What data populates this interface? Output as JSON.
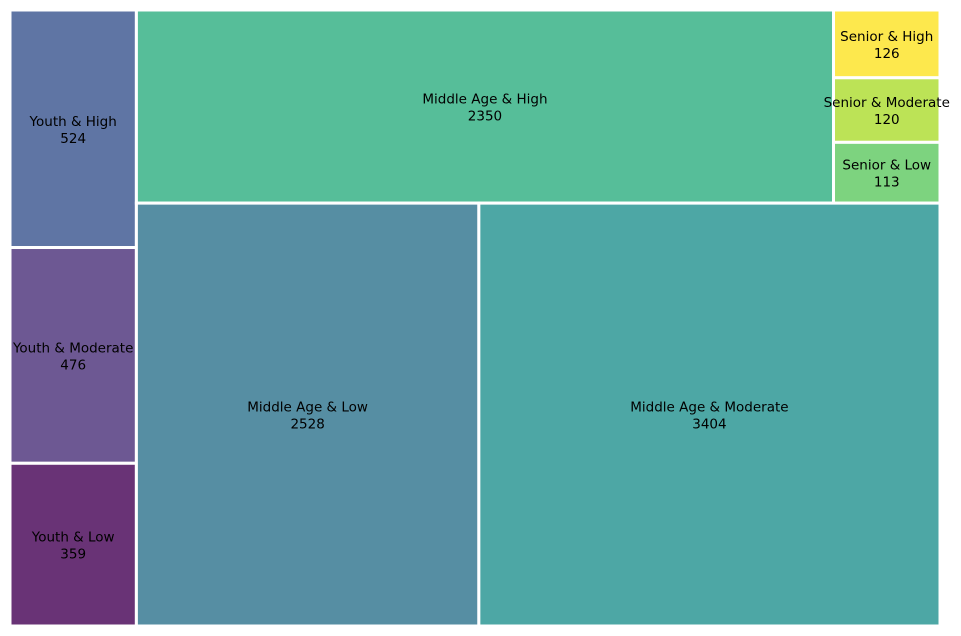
{
  "chart_data": {
    "type": "treemap",
    "title": "",
    "items": [
      {
        "label": "Youth & High",
        "value": 524,
        "color": "#5f75a4"
      },
      {
        "label": "Youth & Moderate",
        "value": 476,
        "color": "#6d5893"
      },
      {
        "label": "Youth & Low",
        "value": 359,
        "color": "#693376"
      },
      {
        "label": "Middle Age & High",
        "value": 2350,
        "color": "#56be99"
      },
      {
        "label": "Middle Age & Low",
        "value": 2528,
        "color": "#568ea3"
      },
      {
        "label": "Middle Age & Moderate",
        "value": 3404,
        "color": "#4da7a5"
      },
      {
        "label": "Senior & High",
        "value": 126,
        "color": "#fde84d"
      },
      {
        "label": "Senior & Moderate",
        "value": 120,
        "color": "#bce356"
      },
      {
        "label": "Senior & Low",
        "value": 113,
        "color": "#7dd37f"
      }
    ]
  }
}
